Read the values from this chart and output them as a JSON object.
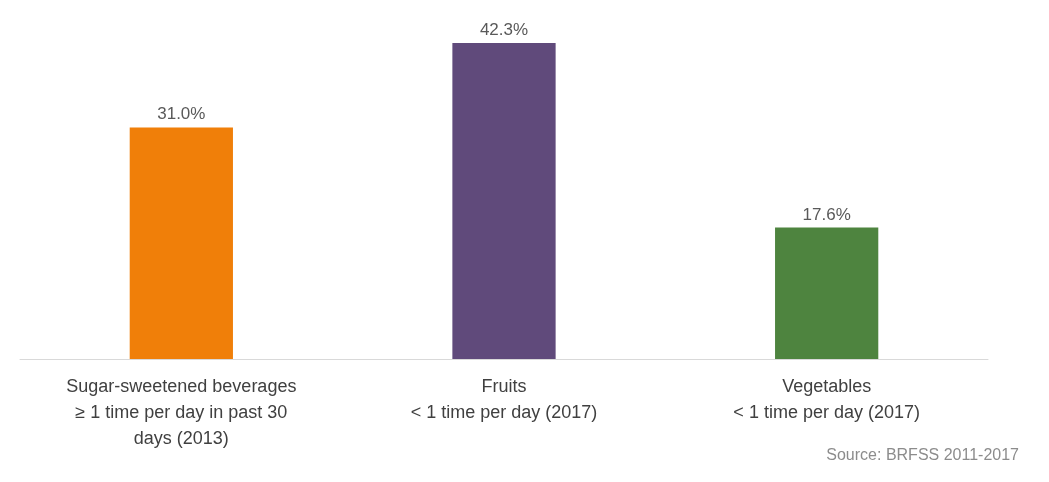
{
  "chart_data": {
    "type": "bar",
    "categories": [
      "Sugar-sweetened beverages\n≥ 1 time per day in past 30\ndays (2013)",
      "Fruits\n< 1 time per day (2017)",
      "Vegetables\n< 1 time per day (2017)"
    ],
    "values": [
      31.0,
      42.3,
      17.6
    ],
    "colors": [
      "#f07f09",
      "#604a7b",
      "#4e843f"
    ],
    "value_labels": [
      "31.0%",
      "42.3%",
      "17.6%"
    ],
    "annotations": [
      "Source: BRFSS 2011-2017"
    ],
    "grid": false
  }
}
